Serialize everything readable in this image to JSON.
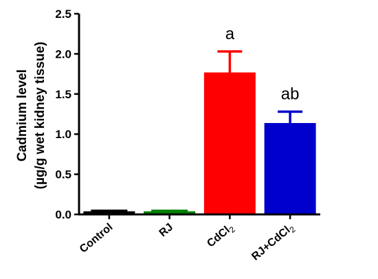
{
  "chart_data": {
    "type": "bar",
    "ylabel_line1": "Cadmium level",
    "ylabel_line2": "(µg/g wet kidney tissue)",
    "ylim": [
      0,
      2.5
    ],
    "yticks": [
      "0.0",
      "0.5",
      "1.0",
      "1.5",
      "2.0",
      "2.5"
    ],
    "ytick_values": [
      0,
      0.5,
      1.0,
      1.5,
      2.0,
      2.5
    ],
    "categories": [
      {
        "base": "Control",
        "sub": ""
      },
      {
        "base": "RJ",
        "sub": ""
      },
      {
        "base": "CdCl",
        "sub": "2"
      },
      {
        "base": "RJ+CdCl",
        "sub": "2"
      }
    ],
    "values": [
      0.03,
      0.03,
      1.76,
      1.13
    ],
    "errors": [
      0.01,
      0.01,
      0.27,
      0.15
    ],
    "annotations": [
      "",
      "",
      "a",
      "ab"
    ],
    "colors": [
      "#000000",
      "#008000",
      "#ff0000",
      "#0000cc"
    ]
  }
}
